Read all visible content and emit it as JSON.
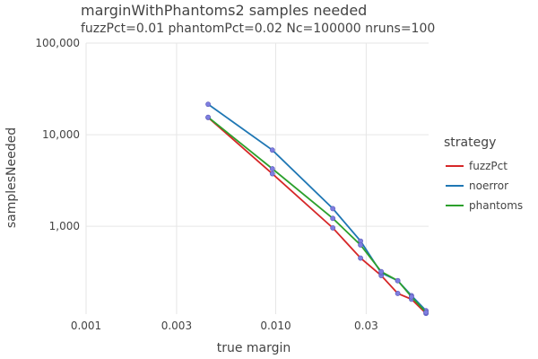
{
  "chart_data": {
    "type": "line",
    "title": "marginWithPhantoms2 samples needed",
    "subtitle": "fuzzPct=0.01 phantomPct=0.02 Nc=100000 nruns=100",
    "xlabel": "true margin",
    "ylabel": "samplesNeeded",
    "x_scale": "log",
    "y_scale": "log",
    "xlim": [
      0.001,
      0.064
    ],
    "ylim": [
      110,
      100000
    ],
    "x_ticks": [
      0.001,
      0.003,
      0.01,
      0.03
    ],
    "x_tick_labels": [
      "0.001",
      "0.003",
      "0.010",
      "0.03"
    ],
    "y_ticks": [
      1000,
      10000,
      100000
    ],
    "y_tick_labels": [
      "1,000",
      "10,000",
      "100,000"
    ],
    "grid": true,
    "legend": {
      "title": "strategy",
      "placement": "right"
    },
    "series": [
      {
        "name": "fuzzPct",
        "color": "#d62728",
        "x": [
          0.0044,
          0.0096,
          0.02,
          0.028,
          0.036,
          0.044,
          0.052,
          0.062
        ],
        "y": [
          15400,
          3750,
          960,
          450,
          290,
          185,
          160,
          112
        ]
      },
      {
        "name": "noerror",
        "color": "#1f77b4",
        "x": [
          0.0044,
          0.0096,
          0.02,
          0.028,
          0.036,
          0.044,
          0.052,
          0.062
        ],
        "y": [
          21500,
          6800,
          1560,
          690,
          310,
          255,
          175,
          120
        ]
      },
      {
        "name": "phantoms",
        "color": "#2ca02c",
        "x": [
          0.0044,
          0.0096,
          0.02,
          0.028,
          0.036,
          0.044,
          0.052,
          0.062
        ],
        "y": [
          15500,
          4250,
          1220,
          625,
          320,
          255,
          170,
          115
        ]
      }
    ]
  }
}
